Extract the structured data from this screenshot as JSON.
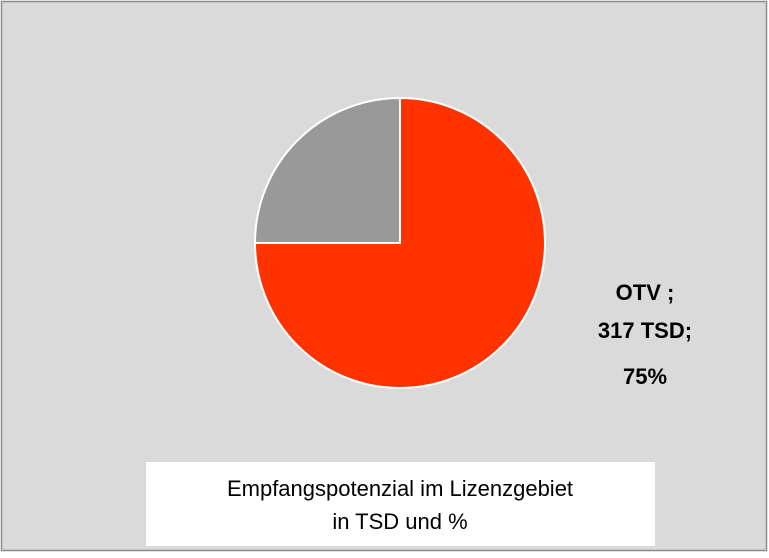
{
  "chart_data": {
    "type": "pie",
    "title": "Empfangspotenzial im Lizenzgebiet",
    "subtitle": "in TSD und %",
    "categories": [
      "OTV ;",
      null
    ],
    "values": [
      75,
      25
    ],
    "value_labels": [
      "75%",
      null
    ],
    "amount_labels": [
      "317 TSD;",
      null
    ],
    "colors": [
      "#ff3300",
      "#999999"
    ]
  }
}
